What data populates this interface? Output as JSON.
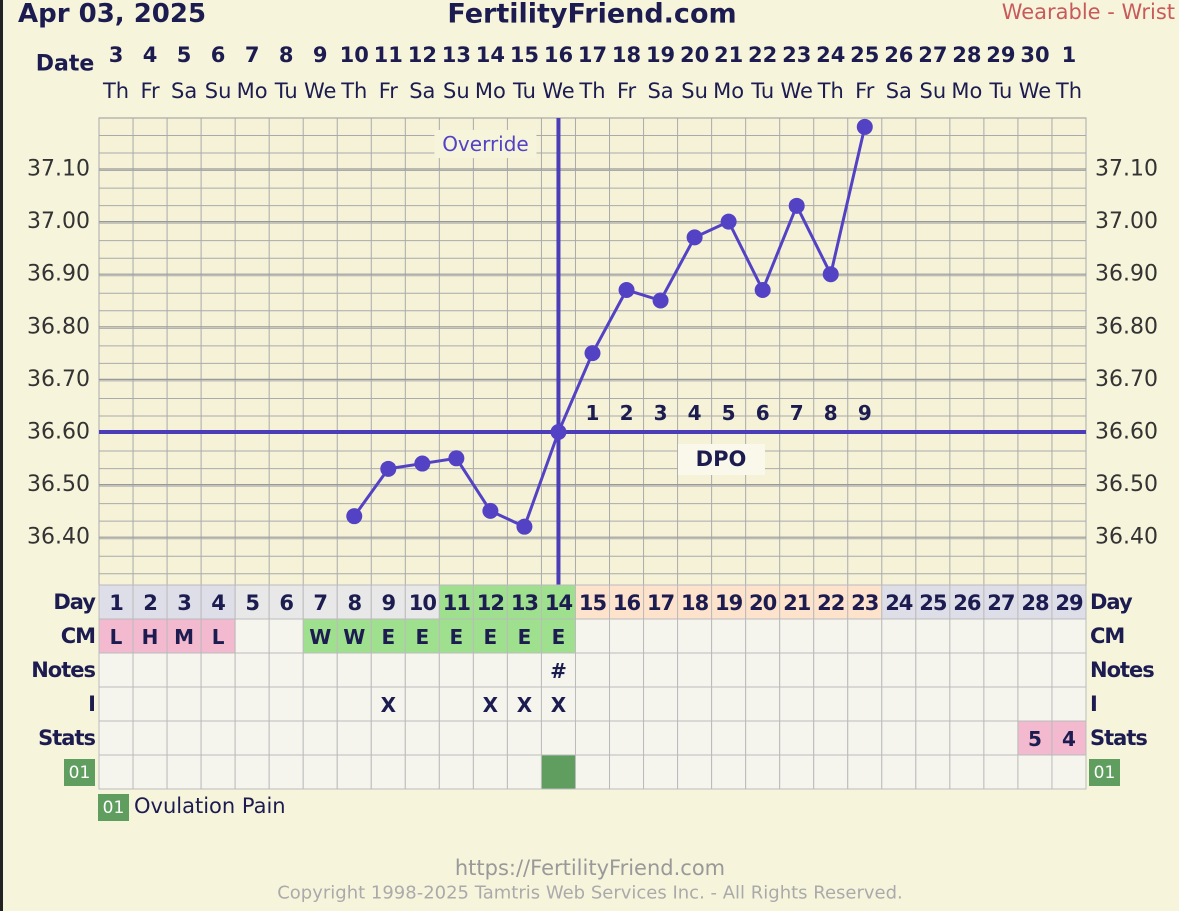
{
  "chart_data": {
    "type": "line",
    "date": "Apr 03, 2025",
    "title": "FertilityFriend.com",
    "source_label": "Wearable - Wrist",
    "x_label": "Date",
    "categories": [
      "3",
      "4",
      "5",
      "6",
      "7",
      "8",
      "9",
      "10",
      "11",
      "12",
      "13",
      "14",
      "15",
      "16",
      "17",
      "18",
      "19",
      "20",
      "21",
      "22",
      "23",
      "24",
      "25",
      "26",
      "27",
      "28",
      "29",
      "30",
      "1"
    ],
    "weekdays": [
      "Th",
      "Fr",
      "Sa",
      "Su",
      "Mo",
      "Tu",
      "We",
      "Th",
      "Fr",
      "Sa",
      "Su",
      "Mo",
      "Tu",
      "We",
      "Th",
      "Fr",
      "Sa",
      "Su",
      "Mo",
      "Tu",
      "We",
      "Th",
      "Fr",
      "Sa",
      "Su",
      "Mo",
      "Tu",
      "We",
      "Th"
    ],
    "values": [
      null,
      null,
      null,
      null,
      null,
      null,
      null,
      36.44,
      36.53,
      36.54,
      36.55,
      36.45,
      36.42,
      36.6,
      36.75,
      36.87,
      36.85,
      36.97,
      37.0,
      36.87,
      37.03,
      36.9,
      37.18,
      null,
      null,
      null,
      null,
      null,
      null
    ],
    "color": "#5343c4",
    "ylim": [
      36.3,
      37.2
    ],
    "yticks": [
      {
        "value": 36.4,
        "label": "36.40"
      },
      {
        "value": 36.5,
        "label": "36.50"
      },
      {
        "value": 36.6,
        "label": "36.60"
      },
      {
        "value": 36.7,
        "label": "36.70"
      },
      {
        "value": 36.8,
        "label": "36.80"
      },
      {
        "value": 36.9,
        "label": "36.90"
      },
      {
        "value": 37.0,
        "label": "37.00"
      },
      {
        "value": 37.1,
        "label": "37.10"
      }
    ],
    "grid": true,
    "coverline": 36.6,
    "line_color": "#4b3cb8",
    "override": {
      "label": "Override",
      "category": "16"
    },
    "dpo": {
      "label": "DPO",
      "values": [
        null,
        null,
        null,
        null,
        null,
        null,
        null,
        null,
        null,
        null,
        null,
        null,
        null,
        null,
        1,
        2,
        3,
        4,
        5,
        6,
        7,
        8,
        9,
        null,
        null,
        null,
        null,
        null,
        null
      ]
    },
    "table": {
      "row_labels": [
        "Day",
        "CM",
        "Notes",
        "I",
        "Stats"
      ],
      "day": [
        1,
        2,
        3,
        4,
        5,
        6,
        7,
        8,
        9,
        10,
        11,
        12,
        13,
        14,
        15,
        16,
        17,
        18,
        19,
        20,
        21,
        22,
        23,
        24,
        25,
        26,
        27,
        28,
        29
      ],
      "day_colors": [
        "#dedee9",
        "#dedee9",
        "#dedee9",
        "#dedee9",
        "#e8e8e8",
        "#e8e8e8",
        "#e8e8e8",
        "#e8e8e8",
        "#e8e8e8",
        "#e8e8e8",
        "#9ee08e",
        "#9ee08e",
        "#9ee08e",
        "#9ee08e",
        "#fde2cc",
        "#fde2cc",
        "#fde2cc",
        "#fde2cc",
        "#fde2cc",
        "#fde2cc",
        "#fde2cc",
        "#fde2cc",
        "#fde2cc",
        "#dedee9",
        "#dedee9",
        "#dedee9",
        "#dedee9",
        "#dedee9",
        "#dedee9"
      ],
      "cm": [
        "L",
        "H",
        "M",
        "L",
        null,
        null,
        "W",
        "W",
        "E",
        "E",
        "E",
        "E",
        "E",
        "E",
        null,
        null,
        null,
        null,
        null,
        null,
        null,
        null,
        null,
        null,
        null,
        null,
        null,
        null,
        null
      ],
      "cm_colors": [
        "#f2b9cf",
        "#f2b9cf",
        "#f2b9cf",
        "#f2b9cf",
        null,
        null,
        "#9ee08e",
        "#9ee08e",
        "#9ee08e",
        "#9ee08e",
        "#9ee08e",
        "#9ee08e",
        "#9ee08e",
        "#9ee08e",
        null,
        null,
        null,
        null,
        null,
        null,
        null,
        null,
        null,
        null,
        null,
        null,
        null,
        null,
        null
      ],
      "notes": [
        null,
        null,
        null,
        null,
        null,
        null,
        null,
        null,
        null,
        null,
        null,
        null,
        null,
        "#",
        null,
        null,
        null,
        null,
        null,
        null,
        null,
        null,
        null,
        null,
        null,
        null,
        null,
        null,
        null
      ],
      "intercourse": [
        null,
        null,
        null,
        null,
        null,
        null,
        null,
        null,
        "X",
        null,
        null,
        "X",
        "X",
        "X",
        null,
        null,
        null,
        null,
        null,
        null,
        null,
        null,
        null,
        null,
        null,
        null,
        null,
        null,
        null
      ],
      "stats": [
        null,
        null,
        null,
        null,
        null,
        null,
        null,
        null,
        null,
        null,
        null,
        null,
        null,
        null,
        null,
        null,
        null,
        null,
        null,
        null,
        null,
        null,
        null,
        null,
        null,
        null,
        null,
        5,
        4
      ],
      "stats_colors": [
        null,
        null,
        null,
        null,
        null,
        null,
        null,
        null,
        null,
        null,
        null,
        null,
        null,
        null,
        null,
        null,
        null,
        null,
        null,
        null,
        null,
        null,
        null,
        null,
        null,
        null,
        null,
        "#f2b9cf",
        "#f2b9cf"
      ],
      "pain_code": "01",
      "pain_colors": [
        null,
        null,
        null,
        null,
        null,
        null,
        null,
        null,
        null,
        null,
        null,
        null,
        null,
        "#5f9e5f",
        null,
        null,
        null,
        null,
        null,
        null,
        null,
        null,
        null,
        null,
        null,
        null,
        null,
        null,
        null
      ],
      "pain_label": "Ovulation Pain"
    },
    "footer_url": "https://FertilityFriend.com",
    "copyright": "Copyright 1998-2025 Tamtris Web Services Inc. - All Rights Reserved."
  }
}
